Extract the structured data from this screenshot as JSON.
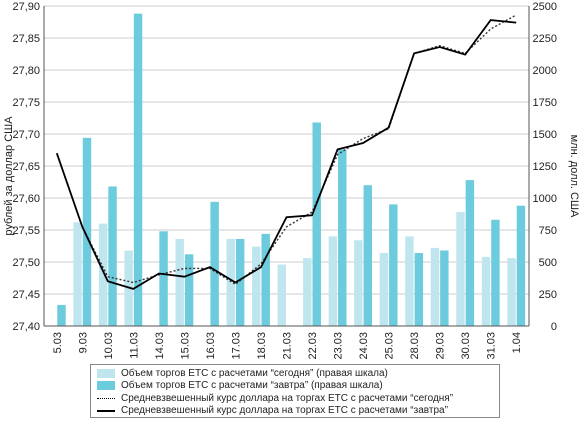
{
  "chart_data": {
    "type": "bar",
    "categories": [
      "5.03",
      "9.03",
      "10.03",
      "11.03",
      "14.03",
      "15.03",
      "16.03",
      "17.03",
      "18.03",
      "21.03",
      "22.03",
      "23.03",
      "24.03",
      "25.03",
      "28.03",
      "29.03",
      "30.03",
      "31.03",
      "1.04"
    ],
    "ylabel_left": "рублей за доллар США",
    "ylabel_right": "млн. долл. США",
    "ylim_left": [
      27.4,
      27.9
    ],
    "ylim_right": [
      0,
      2500
    ],
    "yticks_left": [
      "27,40",
      "27,45",
      "27,50",
      "27,55",
      "27,60",
      "27,65",
      "27,70",
      "27,75",
      "27,80",
      "27,85",
      "27,90"
    ],
    "yticks_right": [
      "0",
      "250",
      "500",
      "750",
      "1000",
      "1250",
      "1500",
      "1750",
      "2000",
      "2250",
      "2500"
    ],
    "series": [
      {
        "name": "Объем торгов ЕТС с расчетами “сегодня” (правая шкала)",
        "type": "bar",
        "axis": "right",
        "values": [
          0,
          810,
          800,
          590,
          0,
          680,
          0,
          680,
          620,
          480,
          530,
          700,
          670,
          570,
          700,
          610,
          890,
          540,
          530
        ]
      },
      {
        "name": "Объем торгов ЕТС с расчетами “завтра” (правая шкала)",
        "type": "bar",
        "axis": "right",
        "values": [
          165,
          1470,
          1090,
          2440,
          740,
          560,
          970,
          680,
          720,
          0,
          1590,
          1380,
          1100,
          950,
          570,
          590,
          1140,
          830,
          940
        ]
      },
      {
        "name": "Средневзвешенный курс доллара на торгах ЕТС с расчетами “сегодня”",
        "type": "line",
        "axis": "left",
        "style": "dotted",
        "values": [
          null,
          27.555,
          27.477,
          27.468,
          27.48,
          27.49,
          27.49,
          27.465,
          27.497,
          27.555,
          27.578,
          27.668,
          27.693,
          27.708,
          27.826,
          27.838,
          27.826,
          27.864,
          27.886
        ]
      },
      {
        "name": "Средневзвешенный курс доллара на торгах ЕТС с расчетами “завтра”",
        "type": "line",
        "axis": "left",
        "style": "solid",
        "values": [
          27.67,
          27.555,
          27.47,
          27.458,
          27.482,
          27.477,
          27.492,
          27.468,
          27.492,
          27.57,
          27.573,
          27.676,
          27.686,
          27.71,
          27.826,
          27.836,
          27.824,
          27.878,
          27.874
        ]
      }
    ],
    "colors": {
      "bar_today": "#bfe6ee",
      "bar_tomorrow": "#6ccbdc",
      "line": "#000000",
      "grid": "#999999"
    },
    "legend_position": "bottom",
    "grid": true
  }
}
